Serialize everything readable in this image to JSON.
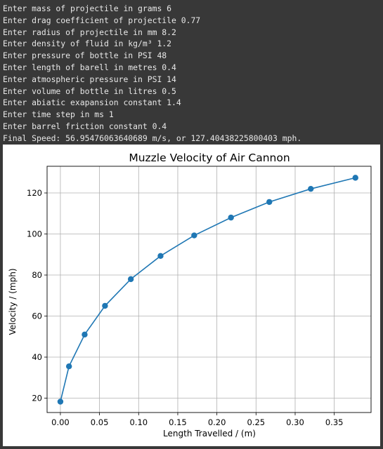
{
  "console": {
    "lines": [
      "Enter mass of projectile in grams 6",
      "Enter drag coefficient of projectile 0.77",
      "Enter radius of projectile in mm 8.2",
      "Enter density of fluid in kg/m³ 1.2",
      "Enter pressure of bottle in PSI 48",
      "Enter length of barell in metres 0.4",
      "Enter atmospheric pressure in PSI 14",
      "Enter volume of bottle in litres 0.5",
      "Enter abiatic exapansion constant 1.4",
      "Enter time step in ms 1",
      "Enter barrel friction constant 0.4",
      "Final Speed: 56.95476063640689 m/s, or 127.40438225800403 mph."
    ]
  },
  "chart_data": {
    "type": "line",
    "title": "Muzzle Velocity of Air Cannon",
    "xlabel": "Length Travelled / (m)",
    "ylabel": "Velocity / (mph)",
    "xlim": [
      -0.017,
      0.397
    ],
    "ylim": [
      13,
      133
    ],
    "xticks": [
      0.0,
      0.05,
      0.1,
      0.15,
      0.2,
      0.25,
      0.3,
      0.35
    ],
    "xtick_labels": [
      "0.00",
      "0.05",
      "0.10",
      "0.15",
      "0.20",
      "0.25",
      "0.30",
      "0.35"
    ],
    "yticks": [
      20,
      40,
      60,
      80,
      100,
      120
    ],
    "ytick_labels": [
      "20",
      "40",
      "60",
      "80",
      "100",
      "120"
    ],
    "grid": true,
    "marker": "circle",
    "line_color": "#1f77b4",
    "series": [
      {
        "x": [
          0.0,
          0.011,
          0.031,
          0.057,
          0.09,
          0.128,
          0.171,
          0.218,
          0.267,
          0.32,
          0.377
        ],
        "y": [
          18.3,
          35.5,
          51,
          65,
          78,
          89.3,
          99.3,
          108,
          115.6,
          122,
          127.4
        ]
      }
    ]
  }
}
